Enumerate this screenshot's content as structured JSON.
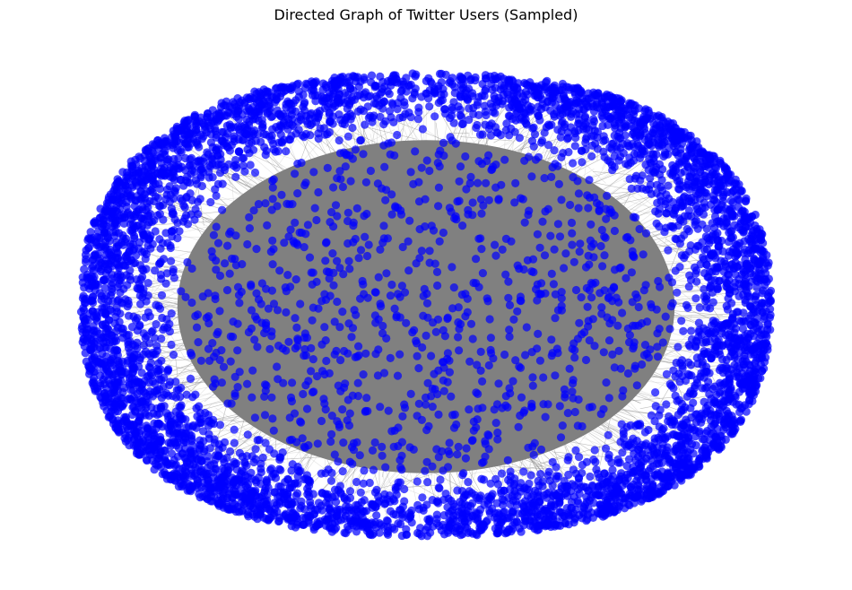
{
  "figure": {
    "title": "Directed Graph of Twitter Users (Sampled)"
  },
  "graph": {
    "directed": true,
    "layout": "spring",
    "node_color": "#0000ff",
    "node_alpha": 0.7,
    "edge_color": "#808080",
    "edge_alpha": 0.5,
    "axes": "off"
  }
}
